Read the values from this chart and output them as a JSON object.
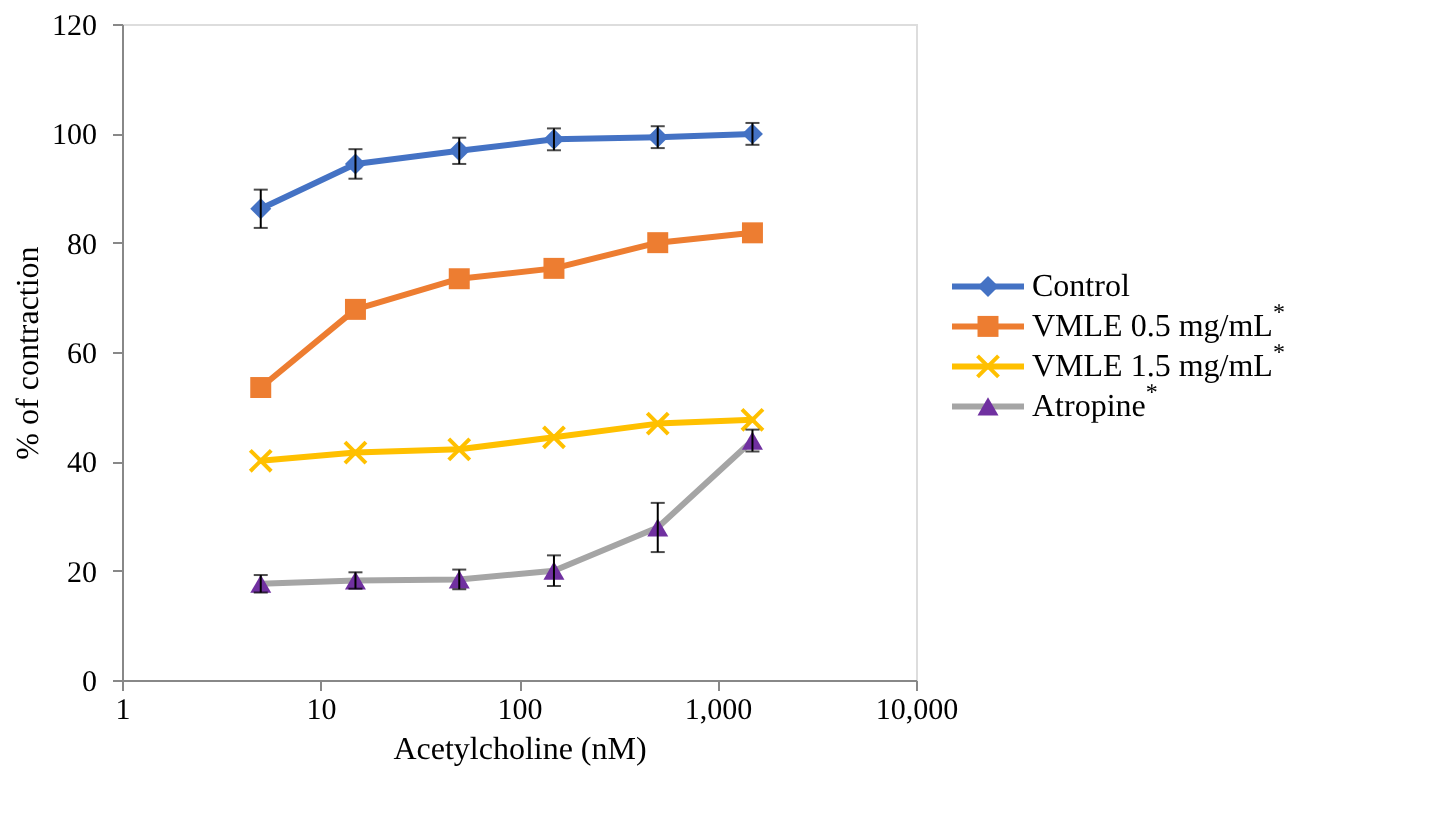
{
  "chart_data": {
    "type": "line",
    "xlabel": "Acetylcholine (nM)",
    "ylabel": "%  of contraction",
    "log": "x",
    "xlim": [
      1,
      10000
    ],
    "xticks": [
      1,
      10,
      100,
      {
        "value": 1000,
        "label": "1,000"
      },
      {
        "value": 10000,
        "label": "10,000"
      }
    ],
    "ylim": [
      0,
      120
    ],
    "yticks": [
      0,
      20,
      40,
      60,
      80,
      100,
      120
    ],
    "grid": false,
    "legend": "right",
    "x": [
      5,
      15,
      50,
      150,
      500,
      1500
    ],
    "series": [
      {
        "name": "Control",
        "color": "#4472c4",
        "marker": "diamond",
        "values": [
          86.2,
          94.4,
          96.8,
          98.9,
          99.3,
          99.9
        ],
        "errors": [
          3.5,
          2.7,
          2.4,
          2,
          2,
          2
        ]
      },
      {
        "name": "VMLE 0.5 mg/mL$^{*}$",
        "color": "#ed7d31",
        "marker": "square",
        "values": [
          53.5,
          67.8,
          73.4,
          75.3,
          80,
          81.8
        ]
      },
      {
        "name": "VMLE 1.5 mg/mL$^{*}$",
        "color": "#ffc000",
        "marker": "cross",
        "values": [
          40.1,
          41.6,
          42.2,
          44.4,
          46.9,
          47.6
        ]
      },
      {
        "name": "Atropine$^{*}$",
        "color": "#a5a5a5",
        "colors": [
          "#7030a0",
          "#7030a0",
          "#7030a0",
          "#7030a0",
          "#7030a0",
          "#7030a0"
        ],
        "marker": "triangle",
        "values": [
          17.6,
          18.2,
          18.4,
          20.0,
          27.9,
          43.8
        ],
        "errors": [
          1.6,
          1.5,
          1.8,
          2.8,
          4.5,
          2
        ]
      }
    ]
  }
}
